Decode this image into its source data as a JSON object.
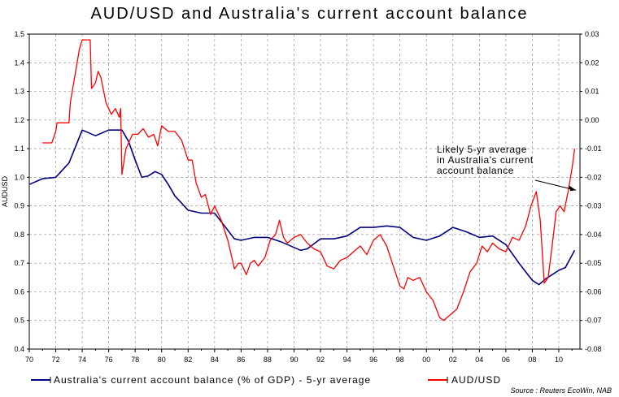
{
  "chart_data": {
    "type": "line",
    "title": "AUD/USD and Australia's current account balance",
    "ylabel_left": "AUDUSD",
    "ylabel_right": "",
    "x_ticks": [
      "70",
      "72",
      "74",
      "76",
      "78",
      "80",
      "82",
      "84",
      "86",
      "88",
      "90",
      "92",
      "94",
      "96",
      "98",
      "00",
      "02",
      "04",
      "06",
      "08",
      "10"
    ],
    "xlim": [
      1970,
      2011.6
    ],
    "ylim_left": [
      0.4,
      1.5
    ],
    "ylim_right": [
      -0.08,
      0.03
    ],
    "y_ticks_left": [
      "1.5",
      "1.4",
      "1.3",
      "1.2",
      "1.1",
      "1.0",
      "0.9",
      "0.8",
      "0.7",
      "0.6",
      "0.5",
      "0.4"
    ],
    "y_ticks_right": [
      "0.03",
      "0.02",
      "0.01",
      "0.00",
      "-0.01",
      "-0.02",
      "-0.03",
      "-0.04",
      "-0.05",
      "-0.06",
      "-0.07",
      "-0.08"
    ],
    "grid": true,
    "legend_position": "bottom",
    "series": [
      {
        "name": "Australia's current account balance (% of GDP) - 5-yr average",
        "axis": "right",
        "color": "#000080",
        "x": [
          1970.0,
          1971.0,
          1972.0,
          1973.0,
          1974.0,
          1975.0,
          1976.0,
          1977.0,
          1977.5,
          1978.0,
          1978.5,
          1979.0,
          1979.5,
          1980.0,
          1980.5,
          1981.0,
          1982.0,
          1983.0,
          1984.0,
          1985.0,
          1985.5,
          1986.0,
          1987.0,
          1988.0,
          1989.0,
          1990.0,
          1990.5,
          1991.0,
          1992.0,
          1993.0,
          1994.0,
          1995.0,
          1996.0,
          1997.0,
          1998.0,
          1999.0,
          2000.0,
          2001.0,
          2002.0,
          2003.0,
          2004.0,
          2005.0,
          2006.0,
          2007.0,
          2008.0,
          2008.5,
          2009.0,
          2009.5,
          2010.0,
          2010.5,
          2011.2
        ],
        "y": [
          -0.0225,
          -0.0205,
          -0.02,
          -0.015,
          -0.0035,
          -0.0055,
          -0.0035,
          -0.0035,
          -0.0075,
          -0.014,
          -0.02,
          -0.0195,
          -0.018,
          -0.019,
          -0.0225,
          -0.0265,
          -0.0315,
          -0.0325,
          -0.0325,
          -0.0385,
          -0.0415,
          -0.042,
          -0.041,
          -0.041,
          -0.0425,
          -0.0445,
          -0.0455,
          -0.045,
          -0.0415,
          -0.0415,
          -0.0405,
          -0.0375,
          -0.0375,
          -0.037,
          -0.0375,
          -0.041,
          -0.042,
          -0.0405,
          -0.0375,
          -0.039,
          -0.041,
          -0.0405,
          -0.0435,
          -0.05,
          -0.056,
          -0.0575,
          -0.0555,
          -0.054,
          -0.0525,
          -0.0515,
          -0.0455
        ]
      },
      {
        "name": "AUD/USD",
        "axis": "left",
        "color": "#ff0000",
        "x": [
          1971.0,
          1971.7,
          1972.0,
          1972.1,
          1973.0,
          1973.1,
          1973.8,
          1974.0,
          1974.6,
          1974.7,
          1975.0,
          1975.2,
          1975.4,
          1975.8,
          1976.0,
          1976.2,
          1976.5,
          1976.8,
          1976.9,
          1977.0,
          1977.3,
          1977.8,
          1978.2,
          1978.6,
          1979.0,
          1979.4,
          1979.7,
          1980.0,
          1980.5,
          1981.0,
          1981.5,
          1982.0,
          1982.3,
          1982.6,
          1983.0,
          1983.3,
          1983.7,
          1984.0,
          1984.5,
          1985.0,
          1985.2,
          1985.5,
          1985.8,
          1986.0,
          1986.4,
          1986.7,
          1987.0,
          1987.3,
          1987.8,
          1988.2,
          1988.6,
          1988.9,
          1989.2,
          1989.5,
          1990.0,
          1990.5,
          1991.0,
          1991.5,
          1992.0,
          1992.5,
          1993.0,
          1993.5,
          1994.0,
          1994.5,
          1995.0,
          1995.5,
          1996.0,
          1996.5,
          1997.0,
          1997.5,
          1998.0,
          1998.3,
          1998.6,
          1999.0,
          1999.5,
          2000.0,
          2000.5,
          2001.0,
          2001.3,
          2001.8,
          2002.3,
          2002.8,
          2003.3,
          2003.8,
          2004.2,
          2004.6,
          2005.0,
          2005.5,
          2006.0,
          2006.5,
          2007.0,
          2007.5,
          2007.9,
          2008.3,
          2008.6,
          2008.9,
          2009.2,
          2009.5,
          2009.8,
          2010.1,
          2010.4,
          2010.7,
          2011.0,
          2011.2
        ],
        "y": [
          1.12,
          1.12,
          1.16,
          1.19,
          1.19,
          1.26,
          1.45,
          1.48,
          1.48,
          1.31,
          1.33,
          1.37,
          1.35,
          1.26,
          1.24,
          1.22,
          1.24,
          1.21,
          1.24,
          1.01,
          1.1,
          1.15,
          1.15,
          1.17,
          1.14,
          1.15,
          1.11,
          1.18,
          1.16,
          1.16,
          1.13,
          1.06,
          1.06,
          0.98,
          0.93,
          0.94,
          0.87,
          0.9,
          0.85,
          0.78,
          0.74,
          0.68,
          0.7,
          0.7,
          0.66,
          0.7,
          0.71,
          0.69,
          0.72,
          0.78,
          0.8,
          0.85,
          0.79,
          0.77,
          0.79,
          0.8,
          0.77,
          0.75,
          0.74,
          0.69,
          0.68,
          0.71,
          0.72,
          0.74,
          0.76,
          0.73,
          0.78,
          0.8,
          0.76,
          0.69,
          0.62,
          0.61,
          0.65,
          0.64,
          0.65,
          0.6,
          0.57,
          0.51,
          0.5,
          0.52,
          0.54,
          0.6,
          0.67,
          0.7,
          0.76,
          0.74,
          0.77,
          0.75,
          0.74,
          0.79,
          0.78,
          0.83,
          0.9,
          0.95,
          0.85,
          0.63,
          0.65,
          0.76,
          0.88,
          0.9,
          0.88,
          0.95,
          1.03,
          1.1
        ]
      }
    ],
    "annotation": {
      "lines": [
        "Likely 5-yr average",
        "in Australia's current",
        "account balance"
      ],
      "arrow_to": [
        2011.3,
        -0.0245
      ]
    },
    "source": "Source : Reuters EcoWin, NAB"
  },
  "colors": {
    "grid": "#999999",
    "axis": "#000000"
  }
}
